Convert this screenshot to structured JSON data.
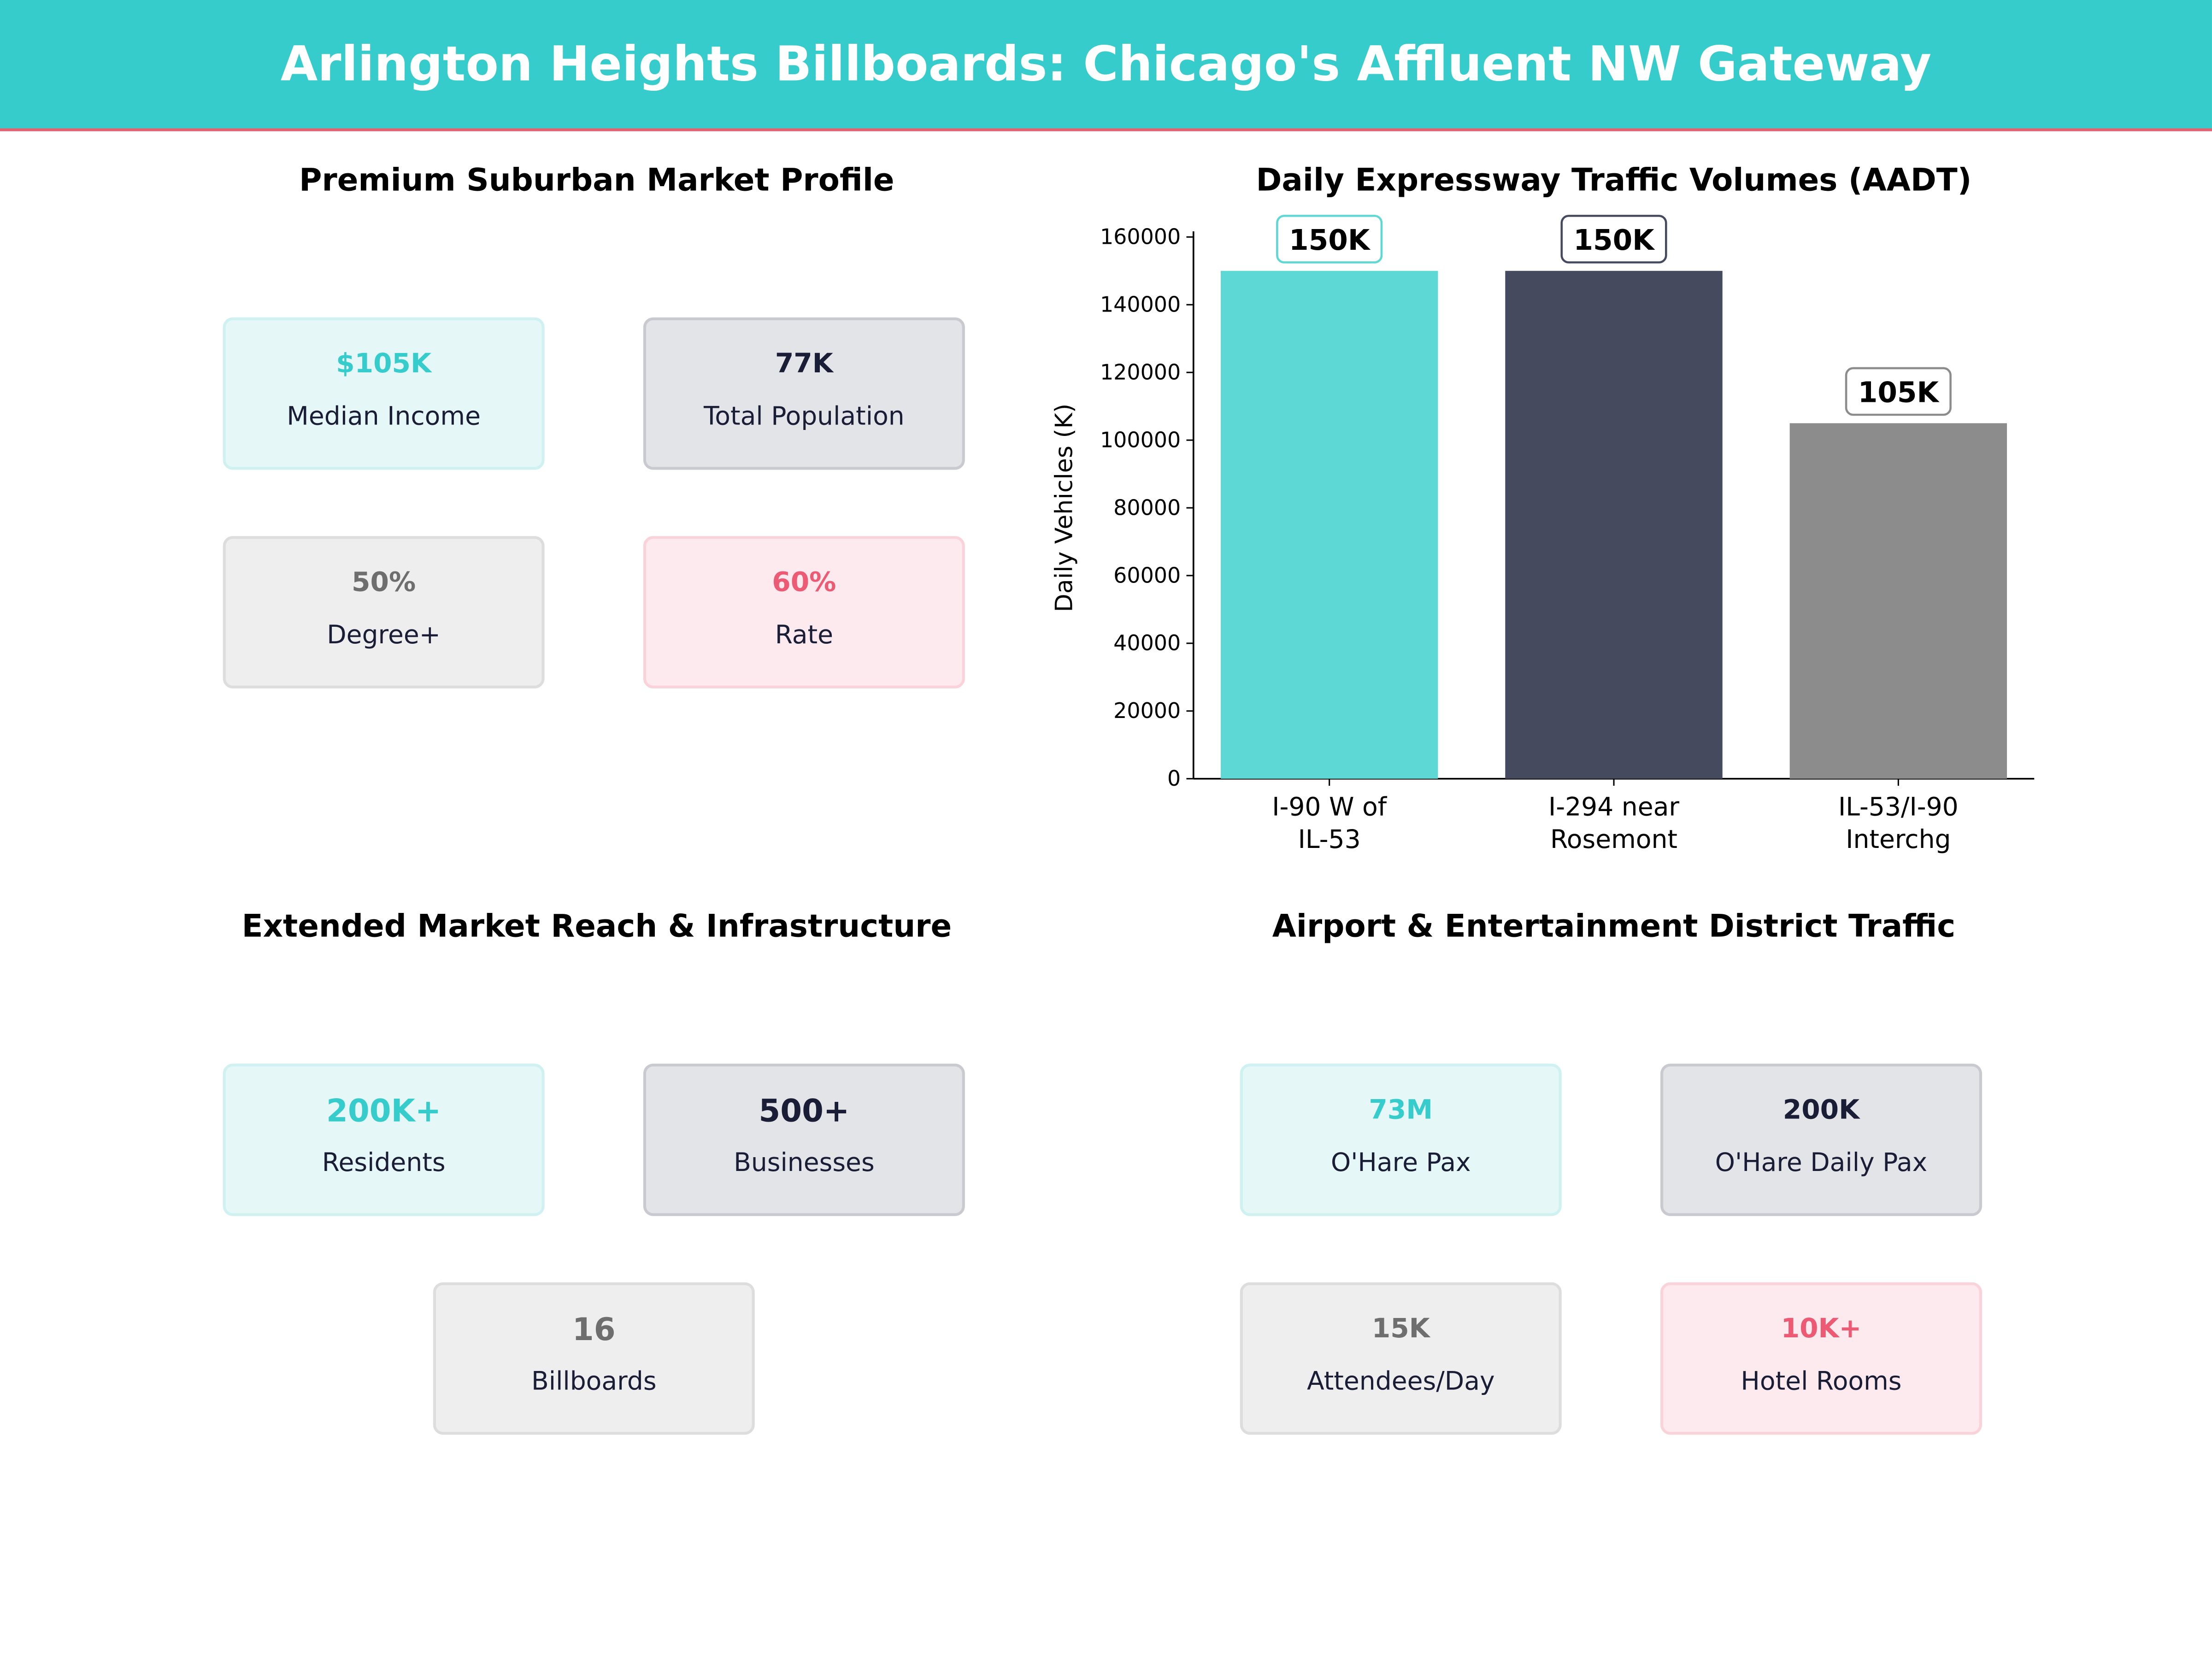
{
  "header": {
    "title": "Arlington Heights Billboards: Chicago's Affluent NW Gateway",
    "accent": "#36CCCC"
  },
  "panels": {
    "market_profile": {
      "title": "Premium Suburban Market Profile",
      "cards": [
        {
          "value": "$105K",
          "label": "Median Income",
          "style": "teal"
        },
        {
          "value": "77K",
          "label": "Total Population",
          "style": "dark"
        },
        {
          "value": "50%",
          "label": "Degree+",
          "style": "gray"
        },
        {
          "value": "60%",
          "label": "Rate",
          "style": "pink"
        }
      ]
    },
    "extended_reach": {
      "title": "Extended Market Reach & Infrastructure",
      "cards": [
        {
          "value": "200K+",
          "label": "Residents",
          "style": "teal"
        },
        {
          "value": "500+",
          "label": "Businesses",
          "style": "dark"
        },
        {
          "value": "16",
          "label": "Billboards",
          "style": "gray"
        }
      ]
    },
    "airport": {
      "title": "Airport & Entertainment District Traffic",
      "cards": [
        {
          "value": "73M",
          "label": "O'Hare  Pax",
          "style": "teal"
        },
        {
          "value": "200K",
          "label": "O'Hare Daily Pax",
          "style": "dark"
        },
        {
          "value": "15K",
          "label": "Attendees/Day",
          "style": "gray"
        },
        {
          "value": "10K+",
          "label": "Hotel Rooms",
          "style": "pink"
        }
      ]
    }
  },
  "chart_data": {
    "type": "bar",
    "title": "Daily Expressway Traffic Volumes (AADT)",
    "xlabel": "",
    "ylabel": "Daily Vehicles (K)",
    "categories": [
      [
        "I-90 W of",
        "IL-53"
      ],
      [
        "I-294 near",
        "Rosemont"
      ],
      [
        "IL-53/I-90",
        "Interchg"
      ]
    ],
    "values": [
      150000,
      150000,
      105000
    ],
    "data_labels": [
      "150K",
      "150K",
      "105K"
    ],
    "colors": [
      "#5ED8D4",
      "#464A5F",
      "#8C8C8C"
    ],
    "ylim": [
      0,
      160000
    ],
    "yticks": [
      0,
      20000,
      40000,
      60000,
      80000,
      100000,
      120000,
      140000,
      160000
    ],
    "grid": false
  }
}
